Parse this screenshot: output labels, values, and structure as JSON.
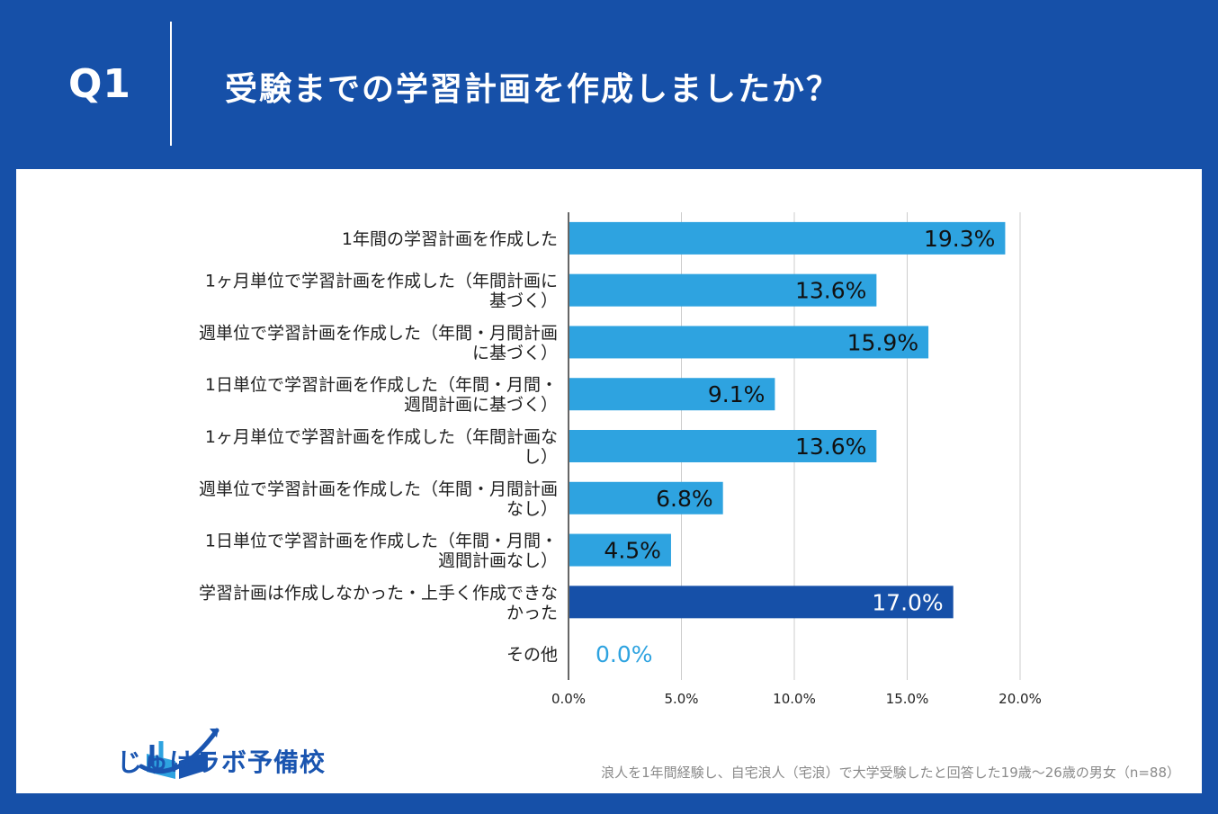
{
  "header": {
    "qnum": "Q1",
    "title": "受験までの学習計画を作成しましたか？"
  },
  "brand": {
    "name": "じゅけラボ予備校"
  },
  "footnote": "浪人を1年間経験し、自宅浪人（宅浪）で大学受験したと回答した19歳～26歳の男女（n=88）",
  "colors": {
    "background": "#1650a8",
    "bar": "#2ea3e0",
    "bar_highlight": "#1650a8",
    "grid": "#cccccc",
    "zero_label": "#2ea3e0"
  },
  "chart_data": {
    "type": "bar",
    "orientation": "horizontal",
    "title": "受験までの学習計画を作成しましたか？",
    "categories": [
      [
        "1年間の学習計画を作成した"
      ],
      [
        "1ヶ月単位で学習計画を作成した（年間計画に",
        "基づく）"
      ],
      [
        "週単位で学習計画を作成した（年間・月間計画",
        "に基づく）"
      ],
      [
        "1日単位で学習計画を作成した（年間・月間・",
        "週間計画に基づく）"
      ],
      [
        "1ヶ月単位で学習計画を作成した（年間計画な",
        "し）"
      ],
      [
        "週単位で学習計画を作成した（年間・月間計画",
        "なし）"
      ],
      [
        "1日単位で学習計画を作成した（年間・月間・",
        "週間計画なし）"
      ],
      [
        "学習計画は作成しなかった・上手く作成できな",
        "かった"
      ],
      [
        "その他"
      ]
    ],
    "values": [
      19.3,
      13.6,
      15.9,
      9.1,
      13.6,
      6.8,
      4.5,
      17.0,
      0.0
    ],
    "value_labels": [
      "19.3%",
      "13.6%",
      "15.9%",
      "9.1%",
      "13.6%",
      "6.8%",
      "4.5%",
      "17.0%",
      "0.0%"
    ],
    "highlight_index": 7,
    "xlim": [
      0,
      20
    ],
    "ticks": [
      0,
      5,
      10,
      15,
      20
    ],
    "tick_labels": [
      "0.0%",
      "5.0%",
      "10.0%",
      "15.0%",
      "20.0%"
    ],
    "grid": true,
    "xlabel": "",
    "ylabel": ""
  }
}
